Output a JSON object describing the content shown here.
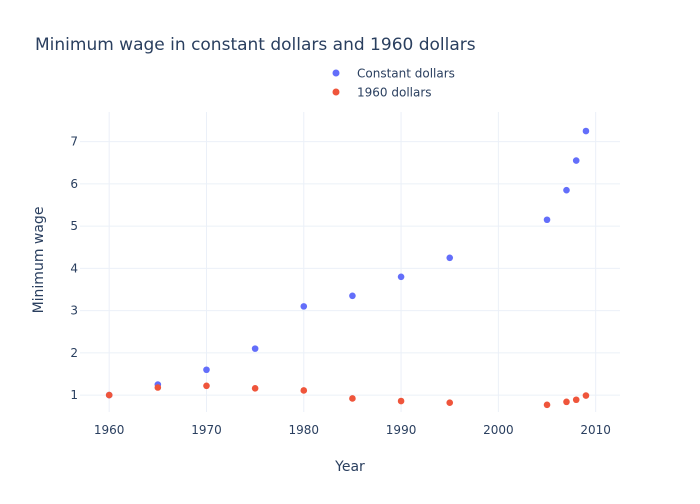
{
  "chart_data": {
    "type": "scatter",
    "title": "Minimum wage in constant dollars and 1960 dollars",
    "xlabel": "Year",
    "ylabel": "Minimum wage",
    "xlim": [
      1957,
      2012.5
    ],
    "ylim": [
      0.6,
      7.7
    ],
    "xticks": [
      1960,
      1970,
      1980,
      1990,
      2000,
      2010
    ],
    "yticks": [
      1,
      2,
      3,
      4,
      5,
      6,
      7
    ],
    "grid": true,
    "legend_position": "top-center",
    "series": [
      {
        "name": "Constant dollars",
        "color": "#636efa",
        "x": [
          1960,
          1965,
          1970,
          1975,
          1980,
          1985,
          1990,
          1995,
          2005,
          2007,
          2008,
          2009
        ],
        "y": [
          1.0,
          1.25,
          1.6,
          2.1,
          3.1,
          3.35,
          3.8,
          4.25,
          5.15,
          5.85,
          6.55,
          7.25
        ]
      },
      {
        "name": "1960 dollars",
        "color": "#ef553b",
        "x": [
          1960,
          1965,
          1970,
          1975,
          1980,
          1985,
          1990,
          1995,
          2005,
          2007,
          2008,
          2009
        ],
        "y": [
          1.0,
          1.18,
          1.22,
          1.16,
          1.11,
          0.92,
          0.86,
          0.82,
          0.77,
          0.84,
          0.89,
          0.99
        ]
      }
    ]
  }
}
